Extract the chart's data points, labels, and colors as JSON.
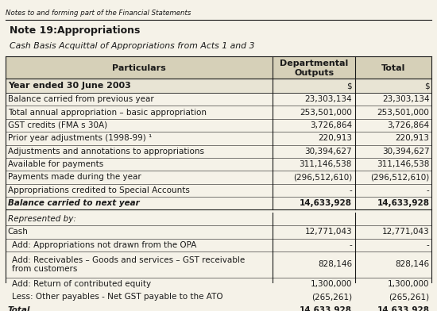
{
  "header_note": "Notes to and forming part of the Financial Statements",
  "title1": "Note 19:Appropriations",
  "title2": "Cash Basis Acquittal of Appropriations from Acts 1 and 3",
  "col_headers": [
    "Particulars",
    "Departmental\nOutputs",
    "Total"
  ],
  "section_year": "Year ended 30 June 2003",
  "col_dollar": [
    "$",
    "$"
  ],
  "rows": [
    [
      "Balance carried from previous year",
      "23,303,134",
      "23,303,134"
    ],
    [
      "Total annual appropriation – basic appropriation",
      "253,501,000",
      "253,501,000"
    ],
    [
      "GST credits (FMA s 30A)",
      "3,726,864",
      "3,726,864"
    ],
    [
      "Prior year adjustments (1998-99) ¹",
      "220,913",
      "220,913"
    ],
    [
      "Adjustments and annotations to appropriations",
      "30,394,627",
      "30,394,627"
    ],
    [
      "Available for payments",
      "311,146,538",
      "311,146,538"
    ],
    [
      "Payments made during the year",
      "(296,512,610)",
      "(296,512,610)"
    ],
    [
      "Appropriations credited to Special Accounts",
      "-",
      "-"
    ],
    [
      "Balance carried to next year",
      "14,633,928",
      "14,633,928"
    ]
  ],
  "represented_by_label": "Represented by:",
  "rows2": [
    [
      "Cash",
      "12,771,043",
      "12,771,043"
    ],
    [
      "Add: Appropriations not drawn from the OPA",
      "-",
      "-"
    ],
    [
      "Add: Receivables – Goods and services – GST receivable\nfrom customers",
      "828,146",
      "828,146"
    ],
    [
      "Add: Return of contributed equity",
      "1,300,000",
      "1,300,000"
    ],
    [
      "Less: Other payables - Net GST payable to the ATO",
      "(265,261)",
      "(265,261)"
    ],
    [
      "Total",
      "14,633,928",
      "14,633,928"
    ]
  ],
  "bold_rows_section1": [
    8
  ],
  "italic_rows_section1": [
    8
  ],
  "bold_rows_section2": [
    5
  ],
  "italic_rows_section2": [
    5
  ],
  "bg_color": "#f5f2e8",
  "header_bg": "#d6d0b8",
  "year_bg": "#e8e4d4",
  "line_color": "#555555",
  "text_color": "#1a1a1a",
  "font_size": 7.5,
  "header_font_size": 8.0
}
